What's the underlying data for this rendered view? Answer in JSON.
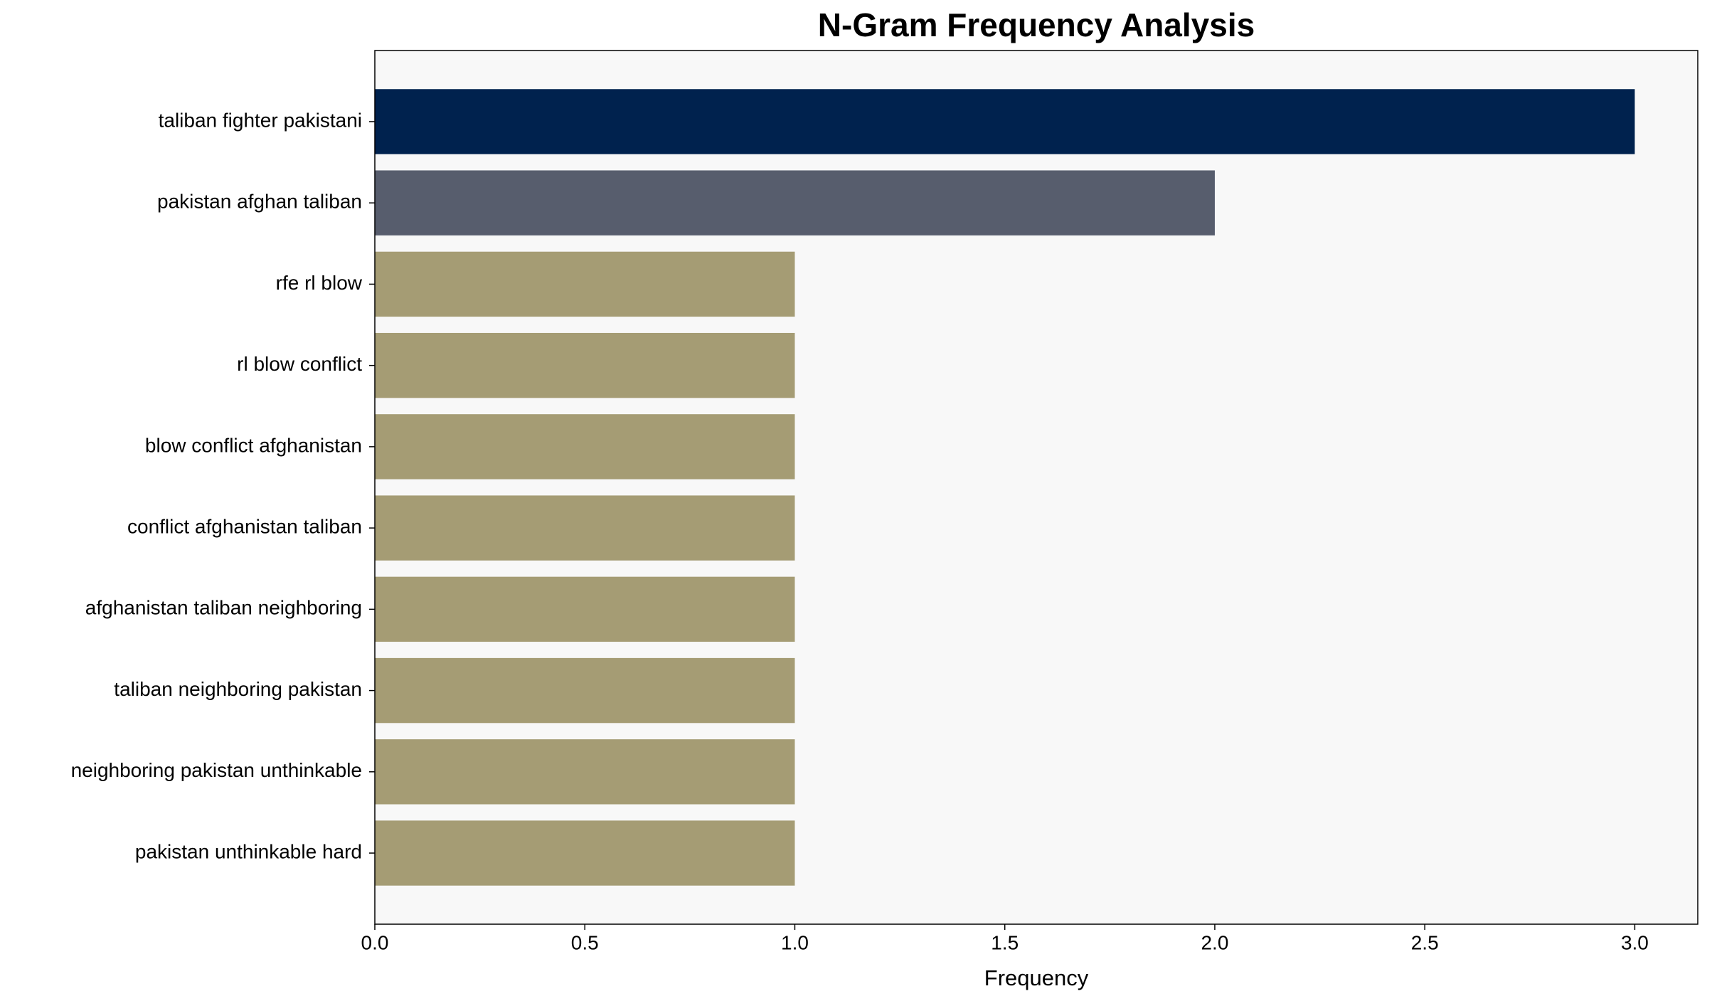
{
  "chart_data": {
    "type": "bar",
    "orientation": "horizontal",
    "title": "N-Gram Frequency Analysis",
    "x_label": "Frequency",
    "categories": [
      "taliban fighter pakistani",
      "pakistan afghan taliban",
      "rfe rl blow",
      "rl blow conflict",
      "blow conflict afghanistan",
      "conflict afghanistan taliban",
      "afghanistan taliban neighboring",
      "taliban neighboring pakistan",
      "neighboring pakistan unthinkable",
      "pakistan unthinkable hard"
    ],
    "values": [
      3,
      2,
      1,
      1,
      1,
      1,
      1,
      1,
      1,
      1
    ],
    "colors": [
      "#00224e",
      "#575d6d",
      "#a59c74",
      "#a59c74",
      "#a59c74",
      "#a59c74",
      "#a59c74",
      "#a59c74",
      "#a59c74",
      "#a59c74"
    ],
    "xlim": [
      0,
      3.15
    ],
    "xticks": [
      {
        "value": 0,
        "label": "0.0"
      },
      {
        "value": 0.5,
        "label": "0.5"
      },
      {
        "value": 1,
        "label": "1.0"
      },
      {
        "value": 1.5,
        "label": "1.5"
      },
      {
        "value": 2,
        "label": "2.0"
      },
      {
        "value": 2.5,
        "label": "2.5"
      },
      {
        "value": 3,
        "label": "3.0"
      }
    ],
    "grid": false,
    "plot_background": "#f8f8f8"
  }
}
